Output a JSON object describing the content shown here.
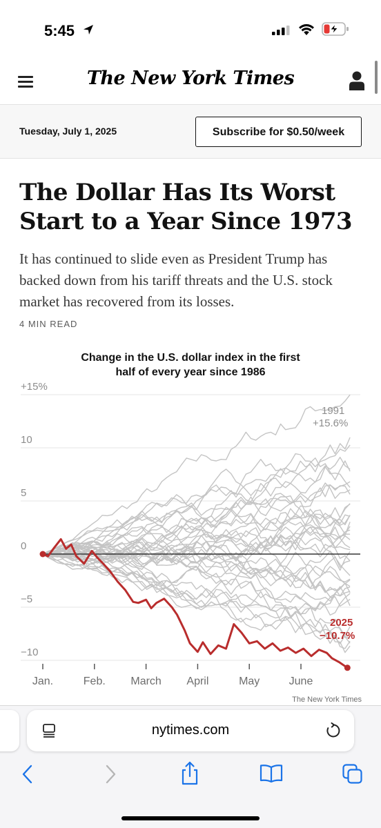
{
  "status_bar": {
    "time": "5:45"
  },
  "header": {
    "logo": "The New York Times"
  },
  "date_bar": {
    "date": "Tuesday, July 1, 2025",
    "subscribe_label": "Subscribe for $0.50/week"
  },
  "article": {
    "headline": "The Dollar Has Its Worst Start to a Year Since 1973",
    "summary": "It has continued to slide even as President Trump has backed down from his tariff threats and the U.S. stock market has recovered from its losses.",
    "read_time": "4 MIN READ"
  },
  "chart_data": {
    "type": "line",
    "title": "Change in the U.S. dollar index in the first half of every year since 1986",
    "y_tick_labels": [
      "+15%",
      "10",
      "5",
      "0",
      "−5",
      "−10"
    ],
    "y_ticks": [
      15,
      10,
      5,
      0,
      -5,
      -10
    ],
    "ylim": [
      -10.5,
      15.5
    ],
    "x_tick_labels": [
      "Jan.",
      "Feb.",
      "March",
      "April",
      "May",
      "June"
    ],
    "grid": true,
    "annotations": [
      {
        "year": "1991",
        "value": "+15.6%"
      },
      {
        "year": "2025",
        "value": "−10.7%"
      }
    ],
    "credit": "The New York Times",
    "highlight_series": {
      "name": "2025",
      "color": "#b92d2d",
      "x_month": [
        0.0,
        0.1,
        0.22,
        0.35,
        0.45,
        0.55,
        0.65,
        0.8,
        0.95,
        1.05,
        1.15,
        1.3,
        1.45,
        1.6,
        1.75,
        1.85,
        2.0,
        2.1,
        2.2,
        2.35,
        2.5,
        2.6,
        2.75,
        2.85,
        3.0,
        3.1,
        3.25,
        3.4,
        3.55,
        3.7,
        3.85,
        4.0,
        4.15,
        4.3,
        4.45,
        4.6,
        4.75,
        4.9,
        5.05,
        5.2,
        5.35,
        5.5,
        5.6,
        5.75,
        5.9
      ],
      "values": [
        0.0,
        -0.2,
        0.6,
        1.4,
        0.5,
        0.9,
        -0.2,
        -0.9,
        0.3,
        -0.3,
        -0.8,
        -1.6,
        -2.6,
        -3.4,
        -4.5,
        -4.6,
        -4.3,
        -5.1,
        -4.6,
        -4.2,
        -5.0,
        -5.7,
        -7.2,
        -8.4,
        -9.2,
        -8.3,
        -9.4,
        -8.6,
        -8.9,
        -6.6,
        -7.4,
        -8.4,
        -8.2,
        -8.9,
        -8.4,
        -9.1,
        -8.8,
        -9.3,
        -8.9,
        -9.6,
        -9.0,
        -9.3,
        -9.8,
        -10.2,
        -10.7
      ]
    },
    "background_series": {
      "color": "#c4c4c4",
      "count": 39,
      "note": "one gray line per year 1986–2024"
    }
  },
  "safari": {
    "url": "nytimes.com"
  },
  "icons": {
    "menu": "hamburger-menu-icon",
    "account": "account-icon",
    "reader": "reader-mode-icon",
    "reload": "reload-icon",
    "back": "back-chevron-icon",
    "forward": "forward-chevron-icon",
    "share": "share-icon",
    "bookmarks": "bookmarks-icon",
    "tabs": "tabs-icon"
  }
}
